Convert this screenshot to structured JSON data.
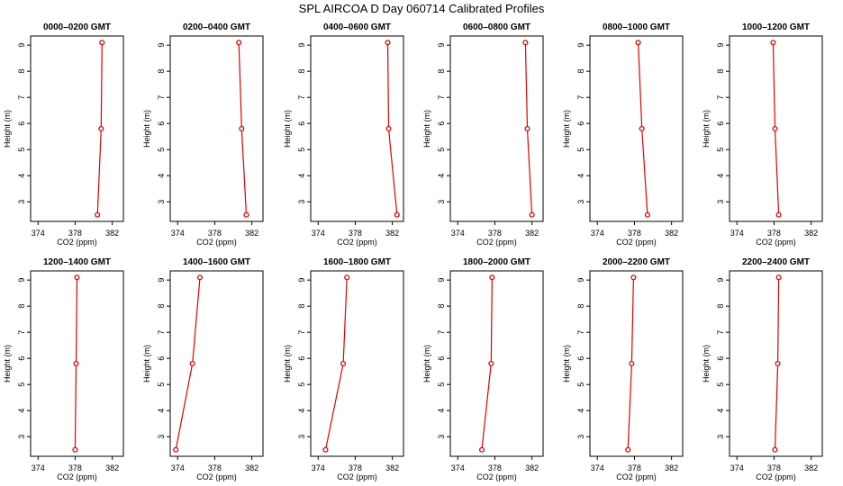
{
  "figure": {
    "title": "SPL AIRCOA D  Day 060714  Calibrated Profiles"
  },
  "chart_data": {
    "type": "line",
    "xlabel": "CO2 (ppm)",
    "ylabel": "Height (m)",
    "xlim": [
      373.2,
      383.2
    ],
    "ylim": [
      2.25,
      9.35
    ],
    "xticks": [
      374,
      378,
      382
    ],
    "yticks": [
      3,
      4,
      5,
      6,
      7,
      8,
      9
    ],
    "series_color": "#e00000",
    "panels": [
      {
        "title": "0000–0200 GMT",
        "points": [
          {
            "x": 380.9,
            "y": 9.1
          },
          {
            "x": 380.8,
            "y": 5.8
          },
          {
            "x": 380.4,
            "y": 2.5
          }
        ]
      },
      {
        "title": "0200–0400 GMT",
        "points": [
          {
            "x": 380.6,
            "y": 9.1
          },
          {
            "x": 380.9,
            "y": 5.8
          },
          {
            "x": 381.4,
            "y": 2.5
          }
        ]
      },
      {
        "title": "0400–0600 GMT",
        "points": [
          {
            "x": 381.5,
            "y": 9.1
          },
          {
            "x": 381.6,
            "y": 5.8
          },
          {
            "x": 382.5,
            "y": 2.5
          }
        ]
      },
      {
        "title": "0600–0800 GMT",
        "points": [
          {
            "x": 381.3,
            "y": 9.1
          },
          {
            "x": 381.5,
            "y": 5.8
          },
          {
            "x": 382.0,
            "y": 2.5
          }
        ]
      },
      {
        "title": "0800–1000 GMT",
        "points": [
          {
            "x": 378.4,
            "y": 9.1
          },
          {
            "x": 378.8,
            "y": 5.8
          },
          {
            "x": 379.4,
            "y": 2.5
          }
        ]
      },
      {
        "title": "1000–1200 GMT",
        "points": [
          {
            "x": 377.9,
            "y": 9.1
          },
          {
            "x": 378.1,
            "y": 5.8
          },
          {
            "x": 378.5,
            "y": 2.5
          }
        ]
      },
      {
        "title": "1200–1400 GMT",
        "points": [
          {
            "x": 378.2,
            "y": 9.1
          },
          {
            "x": 378.1,
            "y": 5.8
          },
          {
            "x": 378.0,
            "y": 2.5
          }
        ]
      },
      {
        "title": "1400–1600 GMT",
        "points": [
          {
            "x": 376.4,
            "y": 9.1
          },
          {
            "x": 375.6,
            "y": 5.8
          },
          {
            "x": 373.8,
            "y": 2.5
          }
        ]
      },
      {
        "title": "1600–1800 GMT",
        "points": [
          {
            "x": 377.1,
            "y": 9.1
          },
          {
            "x": 376.7,
            "y": 5.8
          },
          {
            "x": 374.8,
            "y": 2.5
          }
        ]
      },
      {
        "title": "1800–2000 GMT",
        "points": [
          {
            "x": 377.7,
            "y": 9.1
          },
          {
            "x": 377.6,
            "y": 5.8
          },
          {
            "x": 376.6,
            "y": 2.5
          }
        ]
      },
      {
        "title": "2000–2200 GMT",
        "points": [
          {
            "x": 377.9,
            "y": 9.1
          },
          {
            "x": 377.7,
            "y": 5.8
          },
          {
            "x": 377.3,
            "y": 2.5
          }
        ]
      },
      {
        "title": "2200–2400 GMT",
        "points": [
          {
            "x": 378.5,
            "y": 9.1
          },
          {
            "x": 378.4,
            "y": 5.8
          },
          {
            "x": 378.1,
            "y": 2.5
          }
        ]
      }
    ]
  }
}
